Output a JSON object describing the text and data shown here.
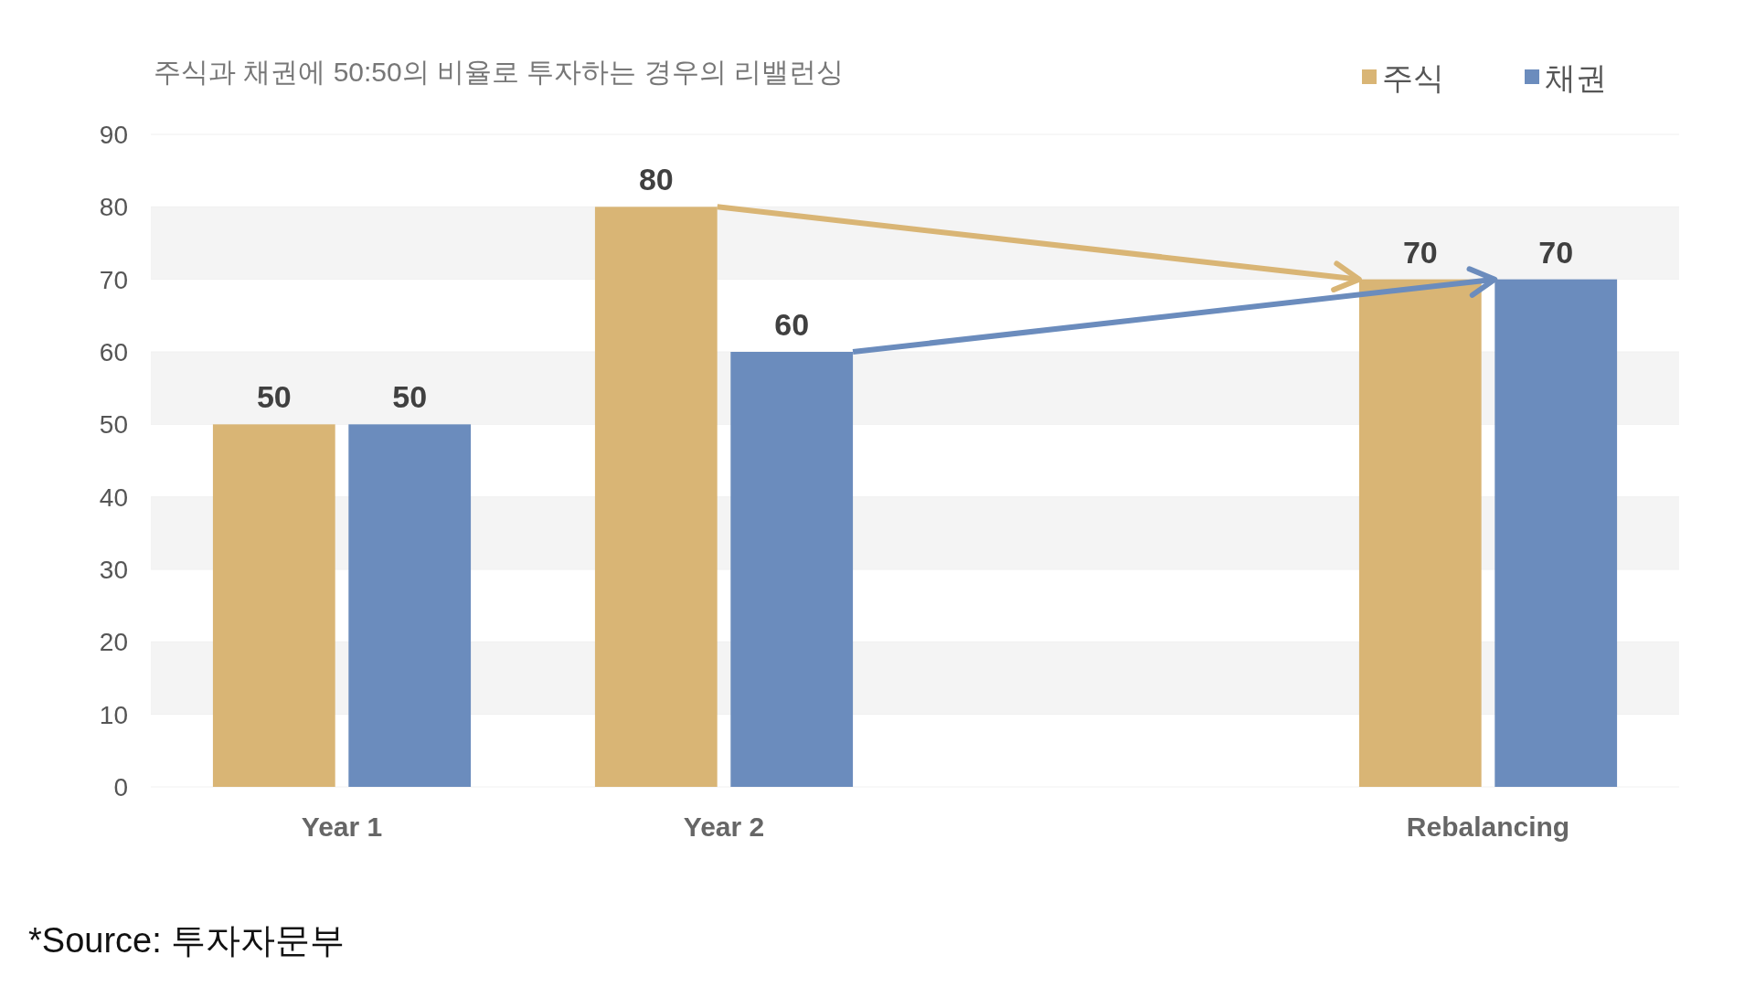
{
  "chart_data": {
    "type": "bar",
    "title": "주식과 채권에 50:50의 비율로 투자하는 경우의 리밸런싱",
    "categories": [
      "Year 1",
      "Year 2",
      null,
      "Rebalancing"
    ],
    "series": [
      {
        "name": "주식",
        "color": "#d9b575",
        "values": [
          50,
          80,
          null,
          70
        ]
      },
      {
        "name": "채권",
        "color": "#6b8cbd",
        "values": [
          50,
          60,
          null,
          70
        ]
      }
    ],
    "ylim": [
      0,
      90
    ],
    "yticks": [
      0,
      10,
      20,
      30,
      40,
      50,
      60,
      70,
      80,
      90
    ],
    "grid": "y",
    "legend": "top right",
    "data_labels": true,
    "annotations": [
      "*Source: 투자자문부"
    ]
  }
}
